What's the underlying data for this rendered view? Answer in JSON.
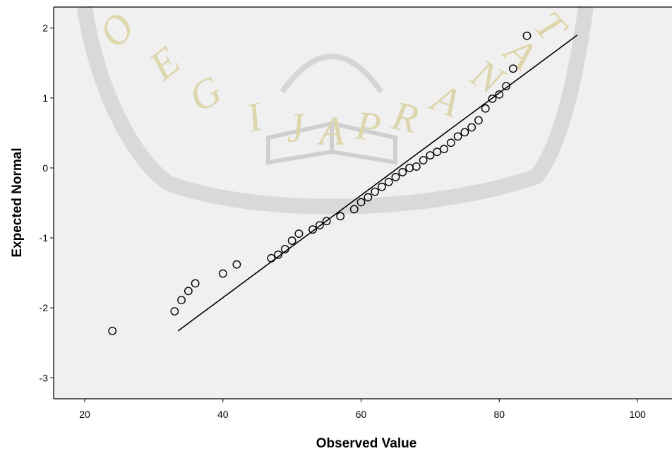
{
  "chart_data": {
    "type": "scatter",
    "title": "",
    "xlabel": "Observed Value",
    "ylabel": "Expected Normal",
    "xlim": [
      15.5,
      105
    ],
    "ylim": [
      -3.3,
      2.3
    ],
    "x_ticks": [
      20,
      40,
      60,
      80,
      100
    ],
    "y_ticks": [
      2,
      1,
      0,
      -1,
      -2,
      -3
    ],
    "grid": false,
    "points": [
      {
        "x": 24,
        "y": -2.33
      },
      {
        "x": 33,
        "y": -2.05
      },
      {
        "x": 34,
        "y": -1.89
      },
      {
        "x": 35,
        "y": -1.76
      },
      {
        "x": 36,
        "y": -1.65
      },
      {
        "x": 40,
        "y": -1.51
      },
      {
        "x": 42,
        "y": -1.38
      },
      {
        "x": 47,
        "y": -1.29
      },
      {
        "x": 48,
        "y": -1.24
      },
      {
        "x": 49,
        "y": -1.16
      },
      {
        "x": 50,
        "y": -1.04
      },
      {
        "x": 51,
        "y": -0.94
      },
      {
        "x": 53,
        "y": -0.88
      },
      {
        "x": 54,
        "y": -0.82
      },
      {
        "x": 55,
        "y": -0.76
      },
      {
        "x": 57,
        "y": -0.69
      },
      {
        "x": 59,
        "y": -0.59
      },
      {
        "x": 60,
        "y": -0.49
      },
      {
        "x": 61,
        "y": -0.42
      },
      {
        "x": 62,
        "y": -0.34
      },
      {
        "x": 63,
        "y": -0.27
      },
      {
        "x": 64,
        "y": -0.2
      },
      {
        "x": 65,
        "y": -0.13
      },
      {
        "x": 66,
        "y": -0.06
      },
      {
        "x": 67,
        "y": 0.0
      },
      {
        "x": 68,
        "y": 0.02
      },
      {
        "x": 69,
        "y": 0.11
      },
      {
        "x": 70,
        "y": 0.18
      },
      {
        "x": 71,
        "y": 0.23
      },
      {
        "x": 72,
        "y": 0.27
      },
      {
        "x": 73,
        "y": 0.36
      },
      {
        "x": 74,
        "y": 0.45
      },
      {
        "x": 75,
        "y": 0.51
      },
      {
        "x": 76,
        "y": 0.58
      },
      {
        "x": 77,
        "y": 0.68
      },
      {
        "x": 78,
        "y": 0.85
      },
      {
        "x": 79,
        "y": 0.99
      },
      {
        "x": 80,
        "y": 1.05
      },
      {
        "x": 81,
        "y": 1.17
      },
      {
        "x": 82,
        "y": 1.42
      },
      {
        "x": 84,
        "y": 1.89
      }
    ],
    "reference_line": {
      "x": [
        33.5,
        91.3
      ],
      "y": [
        -2.33,
        1.9
      ]
    }
  },
  "watermark": {
    "letters": [
      "O",
      "E",
      "G",
      "I",
      "J",
      "A",
      "P",
      "R",
      "A",
      "N",
      "A",
      "T"
    ],
    "color": "#ddd6ad"
  }
}
